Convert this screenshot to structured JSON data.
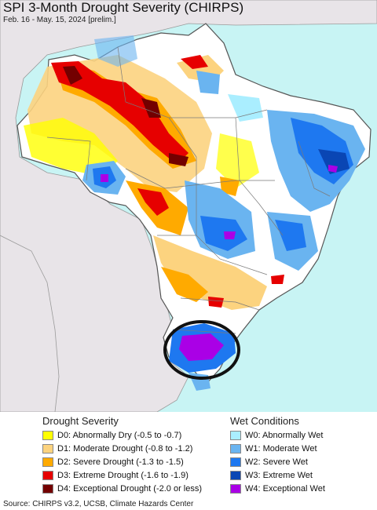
{
  "map": {
    "title": "SPI 3-Month Drought Severity (CHIRPS)",
    "subtitle": "Feb. 16 - May. 15, 2024 [prelim.]",
    "colors": {
      "ocean": "#c8f4f4",
      "outside_land": "#e8e4e8",
      "neutral": "#ffffff",
      "borders": "#7a7a7a",
      "highlight_circle": "#111111"
    }
  },
  "legend": {
    "drought": {
      "heading": "Drought Severity",
      "items": [
        {
          "code": "D0",
          "label": "D0: Abnormally Dry (-0.5 to -0.7)",
          "color": "#ffff00"
        },
        {
          "code": "D1",
          "label": "D1: Moderate Drought (-0.8 to -1.2)",
          "color": "#fcd37f"
        },
        {
          "code": "D2",
          "label": "D2: Severe Drought (-1.3 to -1.5)",
          "color": "#ffaa00"
        },
        {
          "code": "D3",
          "label": "D3: Extreme Drought (-1.6 to -1.9)",
          "color": "#e60000"
        },
        {
          "code": "D4",
          "label": "D4: Exceptional Drought (-2.0 or less)",
          "color": "#730000"
        }
      ]
    },
    "wet": {
      "heading": "Wet Conditions",
      "items": [
        {
          "code": "W0",
          "label": "W0: Abnormally Wet",
          "color": "#aaeeff"
        },
        {
          "code": "W1",
          "label": "W1: Moderate Wet",
          "color": "#6ab4f0"
        },
        {
          "code": "W2",
          "label": "W2: Severe Wet",
          "color": "#1e78f0"
        },
        {
          "code": "W3",
          "label": "W3: Extreme Wet",
          "color": "#0a46b4"
        },
        {
          "code": "W4",
          "label": "W4: Exceptional Wet",
          "color": "#aa00e6"
        }
      ]
    }
  },
  "footer": {
    "source": "Source: CHIRPS v3.2, UCSB, Climate Hazards Center"
  }
}
